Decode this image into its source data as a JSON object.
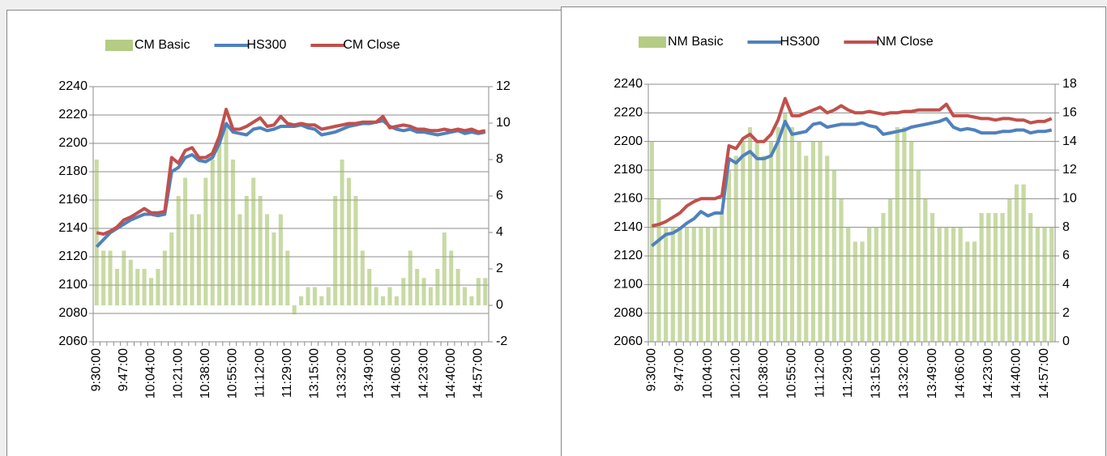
{
  "chart_data": [
    {
      "type": "combo",
      "categories": [
        "9:30:00",
        null,
        null,
        null,
        "9:47:00",
        null,
        null,
        null,
        "10:04:00",
        null,
        null,
        null,
        "10:21:00",
        null,
        null,
        null,
        "10:38:00",
        null,
        null,
        null,
        "10:55:00",
        null,
        null,
        null,
        "11:12:00",
        null,
        null,
        null,
        "11:29:00",
        null,
        null,
        null,
        "13:15:00",
        null,
        null,
        null,
        "13:32:00",
        null,
        null,
        null,
        "13:49:00",
        null,
        null,
        null,
        "14:06:00",
        null,
        null,
        null,
        "14:23:00",
        null,
        null,
        null,
        "14:40:00",
        null,
        null,
        null,
        "14:57:00",
        null
      ],
      "series": [
        {
          "name": "CM Basic",
          "color": "#9bbb59",
          "axis": "y2",
          "values": [
            8,
            3,
            3,
            2,
            3,
            2.5,
            2,
            2,
            1.5,
            2,
            3,
            4,
            6,
            7,
            5,
            5,
            7,
            8,
            9,
            10,
            8,
            5,
            6,
            7,
            6,
            5,
            4,
            5,
            3,
            -0.5,
            0.5,
            1,
            1,
            0.5,
            1,
            6,
            8,
            7,
            6,
            3,
            2,
            1,
            0.5,
            1,
            0.5,
            1.5,
            3,
            2,
            1.5,
            1,
            2,
            4,
            3,
            2,
            1,
            0.5,
            1.5,
            1.5
          ]
        },
        {
          "name": "HS300",
          "color": "#4f81bd",
          "values": [
            2127,
            2132,
            2137,
            2140,
            2143,
            2146,
            2148,
            2150,
            2150,
            2149,
            2150,
            2180,
            2183,
            2190,
            2192,
            2188,
            2187,
            2190,
            2200,
            2214,
            2208,
            2207,
            2206,
            2210,
            2211,
            2209,
            2210,
            2212,
            2212,
            2212,
            2213,
            2211,
            2210,
            2206,
            2207,
            2208,
            2210,
            2212,
            2213,
            2214,
            2214,
            2215,
            2216,
            2212,
            2210,
            2209,
            2210,
            2208,
            2208,
            2207,
            2206,
            2207,
            2208,
            2209,
            2207,
            2208,
            2207,
            2208
          ]
        },
        {
          "name": "CM Close",
          "color": "#c0504d",
          "values": [
            2137,
            2136,
            2138,
            2141,
            2146,
            2148,
            2151,
            2154,
            2151,
            2151,
            2152,
            2190,
            2186,
            2195,
            2197,
            2190,
            2190,
            2193,
            2205,
            2224,
            2210,
            2210,
            2212,
            2215,
            2218,
            2212,
            2213,
            2219,
            2214,
            2213,
            2214,
            2213,
            2213,
            2210,
            2211,
            2212,
            2213,
            2214,
            2214,
            2215,
            2215,
            2215,
            2219,
            2211,
            2212,
            2213,
            2212,
            2210,
            2210,
            2209,
            2209,
            2210,
            2209,
            2210,
            2209,
            2210,
            2208,
            2209
          ]
        }
      ],
      "ylim": [
        2060,
        2240
      ],
      "yticks": [
        2060,
        2080,
        2100,
        2120,
        2140,
        2160,
        2180,
        2200,
        2220,
        2240
      ],
      "y2lim": [
        -2,
        12
      ],
      "y2ticks": [
        -2,
        0,
        2,
        4,
        6,
        8,
        10,
        12
      ],
      "grid": true,
      "legend": "top"
    },
    {
      "type": "combo",
      "categories": [
        "9:30:00",
        null,
        null,
        null,
        "9:47:00",
        null,
        null,
        null,
        "10:04:00",
        null,
        null,
        null,
        "10:21:00",
        null,
        null,
        null,
        "10:38:00",
        null,
        null,
        null,
        "10:55:00",
        null,
        null,
        null,
        "11:12:00",
        null,
        null,
        null,
        "11:29:00",
        null,
        null,
        null,
        "13:15:00",
        null,
        null,
        null,
        "13:32:00",
        null,
        null,
        null,
        "13:49:00",
        null,
        null,
        null,
        "14:06:00",
        null,
        null,
        null,
        "14:23:00",
        null,
        null,
        null,
        "14:40:00",
        null,
        null,
        null,
        "14:57:00",
        null
      ],
      "series": [
        {
          "name": "NM Basic",
          "color": "#9bbb59",
          "axis": "y2",
          "values": [
            14,
            10,
            8,
            8,
            8,
            8,
            8,
            8,
            8,
            8,
            9,
            12,
            13,
            14,
            15,
            14,
            13,
            14,
            15,
            16,
            15,
            14,
            13,
            14,
            14,
            13,
            12,
            10,
            8,
            7,
            7,
            8,
            8,
            9,
            10,
            15,
            15,
            14,
            12,
            10,
            9,
            8,
            8,
            8,
            8,
            7,
            7,
            9,
            9,
            9,
            9,
            10,
            11,
            11,
            9,
            8,
            8,
            8
          ]
        },
        {
          "name": "HS300",
          "color": "#4f81bd",
          "values": [
            2127,
            2131,
            2135,
            2136,
            2139,
            2143,
            2146,
            2151,
            2148,
            2150,
            2150,
            2188,
            2185,
            2190,
            2193,
            2188,
            2188,
            2190,
            2200,
            2214,
            2205,
            2206,
            2207,
            2212,
            2213,
            2210,
            2211,
            2212,
            2212,
            2212,
            2213,
            2211,
            2210,
            2205,
            2206,
            2207,
            2208,
            2210,
            2211,
            2212,
            2213,
            2214,
            2216,
            2210,
            2208,
            2209,
            2208,
            2206,
            2206,
            2206,
            2207,
            2207,
            2208,
            2208,
            2206,
            2207,
            2207,
            2208
          ]
        },
        {
          "name": "NM Close",
          "color": "#c0504d",
          "values": [
            2141,
            2142,
            2144,
            2147,
            2150,
            2155,
            2158,
            2160,
            2160,
            2160,
            2162,
            2197,
            2195,
            2202,
            2205,
            2200,
            2200,
            2205,
            2215,
            2230,
            2218,
            2218,
            2220,
            2222,
            2224,
            2220,
            2222,
            2225,
            2222,
            2220,
            2220,
            2221,
            2220,
            2219,
            2220,
            2220,
            2221,
            2221,
            2222,
            2222,
            2222,
            2222,
            2226,
            2218,
            2218,
            2218,
            2217,
            2216,
            2216,
            2215,
            2216,
            2216,
            2215,
            2215,
            2213,
            2214,
            2214,
            2216
          ]
        }
      ],
      "ylim": [
        2060,
        2240
      ],
      "yticks": [
        2060,
        2080,
        2100,
        2120,
        2140,
        2160,
        2180,
        2200,
        2220,
        2240
      ],
      "y2lim": [
        0,
        18
      ],
      "y2ticks": [
        0,
        2,
        4,
        6,
        8,
        10,
        12,
        14,
        16,
        18
      ],
      "grid": true,
      "legend": "top"
    }
  ]
}
